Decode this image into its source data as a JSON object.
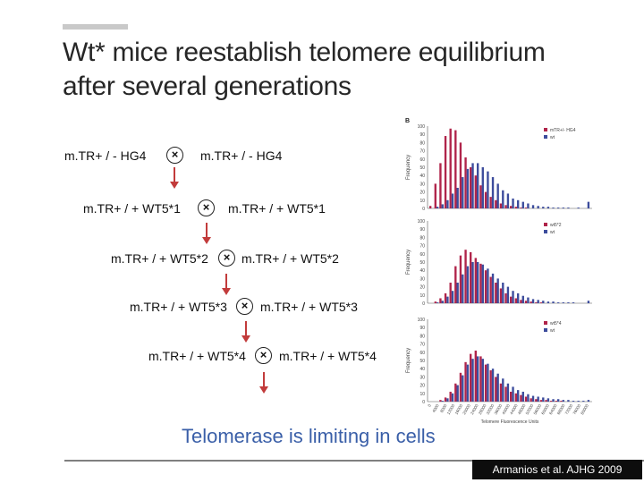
{
  "slide": {
    "title_line1": "Wt* mice reestablish telomere equilibrium",
    "title_line2": "after several generations",
    "caption": "Telomerase is limiting in cells",
    "citation": "Armanios et al. AJHG 2009"
  },
  "crosses": [
    {
      "left": "m.TR+ / -  HG4",
      "symbol": "×",
      "right": "m.TR+ / -  HG4"
    },
    {
      "left": "m.TR+ / +  WT5*1",
      "symbol": "×",
      "right": "m.TR+ / + WT5*1"
    },
    {
      "left": "m.TR+ / + WT5*2",
      "symbol": "×",
      "right": "m.TR+ / + WT5*2"
    },
    {
      "left": "m.TR+ / + WT5*3",
      "symbol": "×",
      "right": "m.TR+ / + WT5*3"
    },
    {
      "left": "m.TR+ / + WT5*4",
      "symbol": "×",
      "right": "m.TR+ / + WT5*4"
    }
  ],
  "chart_data": {
    "type": "bar",
    "panel_label": "B",
    "ylabel": "Frequency",
    "xlabel": "Telomere Fluorescence Units",
    "ylim": [
      0,
      100
    ],
    "yticks": [
      0,
      10,
      20,
      30,
      40,
      50,
      60,
      70,
      80,
      90,
      100
    ],
    "xticks": [
      "0",
      "4000",
      "8000",
      "12000",
      "16000",
      "20000",
      "24000",
      "28000",
      "32000",
      "36000",
      "40000",
      "44000",
      "48000",
      "52000",
      "56000",
      "60000",
      "64000",
      "68000",
      "72000",
      "76000",
      "80000"
    ],
    "colors": {
      "mutant": "#b0244a",
      "wt": "#3c4c9c"
    },
    "panels": [
      {
        "legend": [
          "mTR+/- HG4",
          "wt"
        ],
        "series": [
          {
            "name": "mTR+/- HG4",
            "values": [
              3,
              30,
              55,
              88,
              97,
              95,
              80,
              62,
              50,
              40,
              28,
              20,
              14,
              10,
              6,
              4,
              3,
              2,
              1,
              1,
              0,
              0,
              0,
              0,
              0,
              0,
              0,
              0,
              0,
              0,
              0,
              0
            ]
          },
          {
            "name": "wt",
            "values": [
              0,
              2,
              5,
              10,
              18,
              25,
              38,
              48,
              55,
              55,
              50,
              45,
              38,
              30,
              22,
              18,
              12,
              10,
              8,
              6,
              4,
              3,
              2,
              2,
              1,
              1,
              1,
              1,
              0,
              1,
              0,
              8
            ]
          }
        ]
      },
      {
        "legend": [
          "wt5*2",
          "wt"
        ],
        "series": [
          {
            "name": "wt5*2",
            "values": [
              0,
              2,
              6,
              12,
              25,
              45,
              58,
              65,
              62,
              55,
              48,
              40,
              32,
              25,
              18,
              12,
              8,
              6,
              4,
              3,
              2,
              1,
              1,
              0,
              0,
              0,
              0,
              0,
              0,
              0,
              0,
              0
            ]
          },
          {
            "name": "wt",
            "values": [
              0,
              1,
              3,
              8,
              15,
              25,
              35,
              45,
              50,
              50,
              47,
              42,
              36,
              30,
              25,
              20,
              15,
              12,
              9,
              7,
              5,
              4,
              3,
              2,
              2,
              1,
              1,
              1,
              1,
              0,
              0,
              3
            ]
          }
        ]
      },
      {
        "legend": [
          "wt5*4",
          "wt"
        ],
        "series": [
          {
            "name": "wt5*4",
            "values": [
              0,
              0,
              2,
              5,
              12,
              22,
              35,
              48,
              58,
              62,
              55,
              45,
              38,
              30,
              22,
              18,
              12,
              10,
              8,
              6,
              4,
              3,
              2,
              2,
              1,
              1,
              1,
              0,
              0,
              0,
              0,
              0
            ]
          },
          {
            "name": "wt",
            "values": [
              0,
              0,
              1,
              4,
              10,
              20,
              32,
              45,
              52,
              55,
              52,
              46,
              40,
              34,
              28,
              22,
              18,
              14,
              12,
              9,
              7,
              6,
              5,
              4,
              3,
              3,
              2,
              2,
              1,
              1,
              1,
              2
            ]
          }
        ]
      }
    ]
  }
}
